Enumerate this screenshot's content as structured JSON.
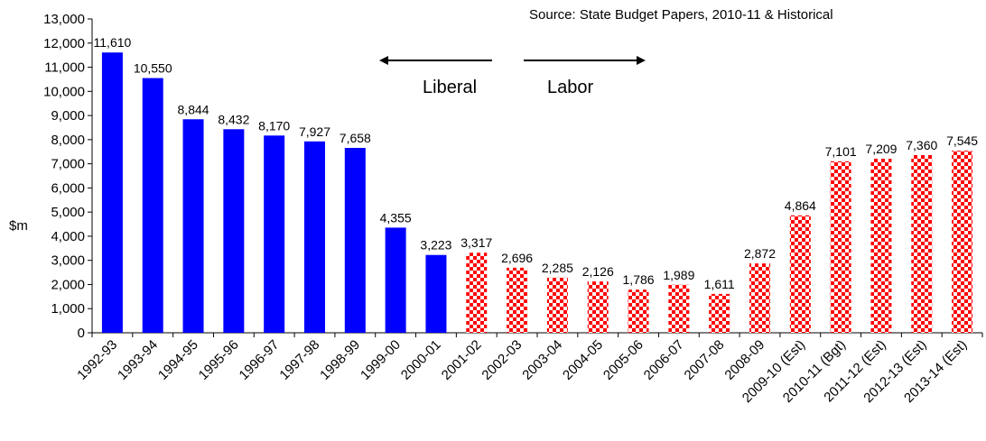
{
  "chart_data": {
    "type": "bar",
    "ylabel": "$m",
    "ylim": [
      0,
      13000
    ],
    "yticks": [
      "0",
      "1,000",
      "2,000",
      "3,000",
      "4,000",
      "5,000",
      "6,000",
      "7,000",
      "8,000",
      "9,000",
      "10,000",
      "11,000",
      "12,000",
      "13,000"
    ],
    "categories": [
      "1992-93",
      "1993-94",
      "1994-95",
      "1995-96",
      "1996-97",
      "1997-98",
      "1998-99",
      "1999-00",
      "2000-01",
      "2001-02",
      "2002-03",
      "2003-04",
      "2004-05",
      "2005-06",
      "2006-07",
      "2007-08",
      "2008-09",
      "2009-10 (Est)",
      "2010-11 (Bgt)",
      "2011-12 (Est)",
      "2012-13 (Est)",
      "2013-14 (Est)"
    ],
    "values": [
      11610,
      10550,
      8844,
      8432,
      8170,
      7927,
      7658,
      4355,
      3223,
      3317,
      2696,
      2285,
      2126,
      1786,
      1989,
      1611,
      2872,
      4864,
      7101,
      7209,
      7360,
      7545
    ],
    "value_labels": [
      "11,610",
      "10,550",
      "8,844",
      "8,432",
      "8,170",
      "7,927",
      "7,658",
      "4,355",
      "3,223",
      "3,317",
      "2,696",
      "2,285",
      "2,126",
      "1,786",
      "1,989",
      "1,611",
      "2,872",
      "4,864",
      "7,101",
      "7,209",
      "7,360",
      "7,545"
    ],
    "government": [
      "Liberal",
      "Liberal",
      "Liberal",
      "Liberal",
      "Liberal",
      "Liberal",
      "Liberal",
      "Liberal",
      "Liberal",
      "Labor",
      "Labor",
      "Labor",
      "Labor",
      "Labor",
      "Labor",
      "Labor",
      "Labor",
      "Labor",
      "Labor",
      "Labor",
      "Labor",
      "Labor"
    ],
    "colors": {
      "Liberal": "#0000ff",
      "Labor": "#ff0000"
    },
    "source_note": "Source: State Budget Papers, 2010-11 & Historical",
    "annotations": {
      "left_arrow_label": "Liberal",
      "right_arrow_label": "Labor"
    },
    "grid": false,
    "legend": "none"
  }
}
